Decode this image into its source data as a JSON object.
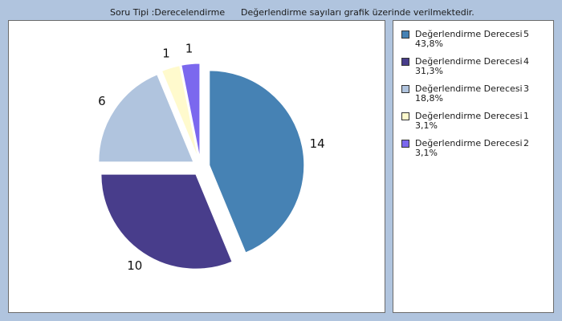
{
  "header": {
    "type_text": "Soru Tipi :Derecelendirme",
    "note_text": "Değerlendirme sayıları grafik üzerinde verilmektedir."
  },
  "legend": [
    {
      "name": "Değerlendirme Derecesi",
      "value": "5",
      "percent": "43,8%",
      "color": "#4682b4"
    },
    {
      "name": "Değerlendirme Derecesi",
      "value": "4",
      "percent": "31,3%",
      "color": "#483d8b"
    },
    {
      "name": "Değerlendirme Derecesi",
      "value": "3",
      "percent": "18,8%",
      "color": "#b0c4de"
    },
    {
      "name": "Değerlendirme Derecesi",
      "value": "1",
      "percent": "3,1%",
      "color": "#fffacd"
    },
    {
      "name": "Değerlendirme Derecesi",
      "value": "2",
      "percent": "3,1%",
      "color": "#7b68ee"
    }
  ],
  "chart_data": {
    "type": "pie",
    "categories": [
      "Değerlendirme Derecesi 5",
      "Değerlendirme Derecesi 4",
      "Değerlendirme Derecesi 3",
      "Değerlendirme Derecesi 1",
      "Değerlendirme Derecesi 2"
    ],
    "values": [
      14,
      10,
      6,
      1,
      1
    ],
    "percent_labels": [
      "43,8%",
      "31,3%",
      "18,8%",
      "3,1%",
      "3,1%"
    ],
    "data_labels": [
      "14",
      "10",
      "6",
      "1",
      "1"
    ],
    "colors": [
      "#4682b4",
      "#483d8b",
      "#b0c4de",
      "#fffacd",
      "#7b68ee"
    ],
    "exploded": true,
    "legend_position": "right"
  }
}
